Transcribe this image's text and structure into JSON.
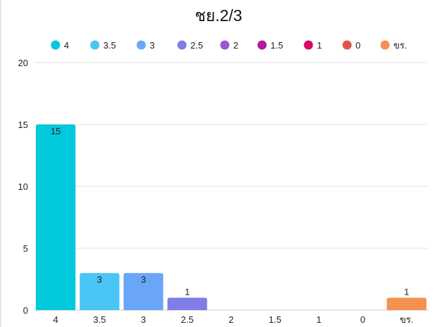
{
  "chart_data": {
    "type": "bar",
    "title": "ชย.2/3",
    "xlabel": "",
    "ylabel": "",
    "categories": [
      "4",
      "3.5",
      "3",
      "2.5",
      "2",
      "1.5",
      "1",
      "0",
      "ขร."
    ],
    "values": [
      15,
      3,
      3,
      1,
      0,
      0,
      0,
      0,
      1
    ],
    "data_labels": [
      "15",
      "3",
      "3",
      "1",
      "",
      "",
      "",
      "",
      "1"
    ],
    "colors": [
      "#00c9dc",
      "#4ac5f5",
      "#6aa6f7",
      "#7f7ee6",
      "#9b56d8",
      "#b5179e",
      "#d60a6a",
      "#e0534a",
      "#f5914f"
    ],
    "ylim": [
      0,
      20
    ],
    "yticks": [
      0,
      5,
      10,
      15,
      20
    ],
    "grid": true,
    "legend": {
      "placement": "top",
      "entries": [
        "4",
        "3.5",
        "3",
        "2.5",
        "2",
        "1.5",
        "1",
        "0",
        "ขร."
      ]
    }
  }
}
